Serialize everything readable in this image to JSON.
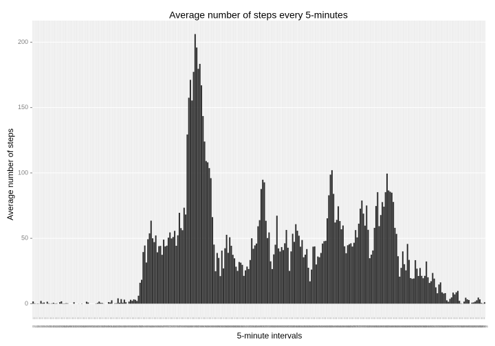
{
  "chart_data": {
    "type": "bar",
    "title": "Average number of steps every 5-minutes",
    "x_label": "5-minute intervals",
    "y_label": "Average number of steps",
    "color": "#333333",
    "grid": true,
    "ylim": [
      -10.3,
      216.5
    ],
    "yticks": [
      0,
      50,
      100,
      150,
      200
    ],
    "categories": [
      0,
      5,
      10,
      15,
      20,
      25,
      30,
      35,
      40,
      45,
      50,
      55,
      100,
      105,
      110,
      115,
      120,
      125,
      130,
      135,
      140,
      145,
      150,
      155,
      200,
      205,
      210,
      215,
      220,
      225,
      230,
      235,
      240,
      245,
      250,
      255,
      300,
      305,
      310,
      315,
      320,
      325,
      330,
      335,
      340,
      345,
      350,
      355,
      400,
      405,
      410,
      415,
      420,
      425,
      430,
      435,
      440,
      445,
      450,
      455,
      500,
      505,
      510,
      515,
      520,
      525,
      530,
      535,
      540,
      545,
      550,
      555,
      600,
      605,
      610,
      615,
      620,
      625,
      630,
      635,
      640,
      645,
      650,
      655,
      700,
      705,
      710,
      715,
      720,
      725,
      730,
      735,
      740,
      745,
      750,
      755,
      800,
      805,
      810,
      815,
      820,
      825,
      830,
      835,
      840,
      845,
      850,
      855,
      900,
      905,
      910,
      915,
      920,
      925,
      930,
      935,
      940,
      945,
      950,
      955,
      1000,
      1005,
      1010,
      1015,
      1020,
      1025,
      1030,
      1035,
      1040,
      1045,
      1050,
      1055,
      1100,
      1105,
      1110,
      1115,
      1120,
      1125,
      1130,
      1135,
      1140,
      1145,
      1150,
      1155,
      1200,
      1205,
      1210,
      1215,
      1220,
      1225,
      1230,
      1235,
      1240,
      1245,
      1250,
      1255,
      1300,
      1305,
      1310,
      1315,
      1320,
      1325,
      1330,
      1335,
      1340,
      1345,
      1350,
      1355,
      1400,
      1405,
      1410,
      1415,
      1420,
      1425,
      1430,
      1435,
      1440,
      1445,
      1450,
      1455,
      1500,
      1505,
      1510,
      1515,
      1520,
      1525,
      1530,
      1535,
      1540,
      1545,
      1550,
      1555,
      1600,
      1605,
      1610,
      1615,
      1620,
      1625,
      1630,
      1635,
      1640,
      1645,
      1650,
      1655,
      1700,
      1705,
      1710,
      1715,
      1720,
      1725,
      1730,
      1735,
      1740,
      1745,
      1750,
      1755,
      1800,
      1805,
      1810,
      1815,
      1820,
      1825,
      1830,
      1835,
      1840,
      1845,
      1850,
      1855,
      1900,
      1905,
      1910,
      1915,
      1920,
      1925,
      1930,
      1935,
      1940,
      1945,
      1950,
      1955,
      2000,
      2005,
      2010,
      2015,
      2020,
      2025,
      2030,
      2035,
      2040,
      2045,
      2050,
      2055,
      2100,
      2105,
      2110,
      2115,
      2120,
      2125,
      2130,
      2135,
      2140,
      2145,
      2150,
      2155,
      2200,
      2205,
      2210,
      2215,
      2220,
      2225,
      2230,
      2235,
      2240,
      2245,
      2250,
      2255,
      2300,
      2305,
      2310,
      2315,
      2320,
      2325,
      2330,
      2335,
      2340,
      2345,
      2350,
      2355
    ],
    "values": [
      1.7,
      0.3,
      0.1,
      0.2,
      0.1,
      2.1,
      0.5,
      0.9,
      0,
      1.5,
      0.3,
      0.1,
      0.3,
      0.7,
      0.2,
      0.3,
      0,
      1.1,
      1.8,
      0.2,
      0.2,
      0.4,
      0.3,
      0,
      0,
      0,
      1.1,
      0,
      0,
      0.1,
      0,
      0.2,
      0,
      0,
      1.5,
      0.9,
      0,
      0,
      0,
      0,
      0.2,
      0.6,
      1.6,
      0.6,
      0.5,
      0.1,
      0,
      0,
      1.2,
      0.9,
      2.6,
      0,
      0.3,
      0.4,
      4.1,
      0.7,
      3.5,
      0.8,
      3.1,
      1.1,
      0,
      1.6,
      3,
      2.2,
      3.3,
      3,
      2.1,
      6.1,
      16,
      18.3,
      39.5,
      44.5,
      31.5,
      49.3,
      53.8,
      63.5,
      50,
      47.1,
      52.2,
      39.3,
      44,
      44.2,
      37.4,
      49,
      43.8,
      44.4,
      50.5,
      54.5,
      49.9,
      51,
      55.7,
      44.3,
      52.3,
      69.5,
      57.8,
      56.2,
      73.4,
      68.2,
      129.4,
      157.5,
      171.2,
      155.4,
      177.3,
      206.2,
      195.9,
      179.6,
      183.4,
      167,
      143.5,
      124,
      109.1,
      108.1,
      103.7,
      96,
      66.2,
      45.2,
      24.8,
      38.8,
      35,
      21.1,
      40.6,
      27,
      42.4,
      52.7,
      38.9,
      50.8,
      44.3,
      37.4,
      34.7,
      28.3,
      25.1,
      31.9,
      31.4,
      29.7,
      21.3,
      25.5,
      28.4,
      26.5,
      33.4,
      50,
      42,
      44.6,
      46,
      59.2,
      63.9,
      87.7,
      94.8,
      92.8,
      63.4,
      50.2,
      54.5,
      32.4,
      26.5,
      37.7,
      45.1,
      67.3,
      42.3,
      39.9,
      43.3,
      41,
      46.2,
      56.4,
      42.8,
      25.1,
      40,
      53.5,
      47.3,
      60.8,
      55.8,
      52,
      43.6,
      48.7,
      35.5,
      37.5,
      41.8,
      27.5,
      17.1,
      26.1,
      43.6,
      43.8,
      30,
      36.1,
      35.5,
      38.8,
      46,
      47.8,
      48.1,
      65.3,
      82.9,
      98.7,
      102.1,
      84,
      62.1,
      64.1,
      74.5,
      63.2,
      56.9,
      59.8,
      43.9,
      38.6,
      44.7,
      45.5,
      46.2,
      43.7,
      46.6,
      56.3,
      50.7,
      61.2,
      72.7,
      78.9,
      68.9,
      59.7,
      75.1,
      56.5,
      34.8,
      37.5,
      40.7,
      58,
      74.7,
      85.3,
      59.3,
      67.8,
      77.7,
      74.2,
      85.3,
      99.5,
      86.6,
      85.6,
      84.9,
      77.8,
      58,
      53.4,
      36.3,
      20.7,
      27.4,
      40,
      30.2,
      25.5,
      45.7,
      33.5,
      19.6,
      19,
      19.3,
      33.3,
      26.8,
      21.2,
      27.3,
      21.3,
      19.5,
      21.3,
      32.3,
      20.2,
      15.9,
      17.2,
      23.5,
      19.2,
      12.5,
      8,
      14.7,
      16.3,
      8.7,
      7.8,
      8.1,
      2.6,
      1.5,
      3.7,
      4.8,
      8.5,
      7.1,
      8.7,
      9.8,
      2.2,
      0.3,
      0.1,
      1.6,
      4.6,
      3.3,
      2.8,
      0,
      0.8,
      1,
      1.6,
      2.6,
      4.7,
      3.3,
      0.6,
      0.2,
      1.1
    ]
  }
}
